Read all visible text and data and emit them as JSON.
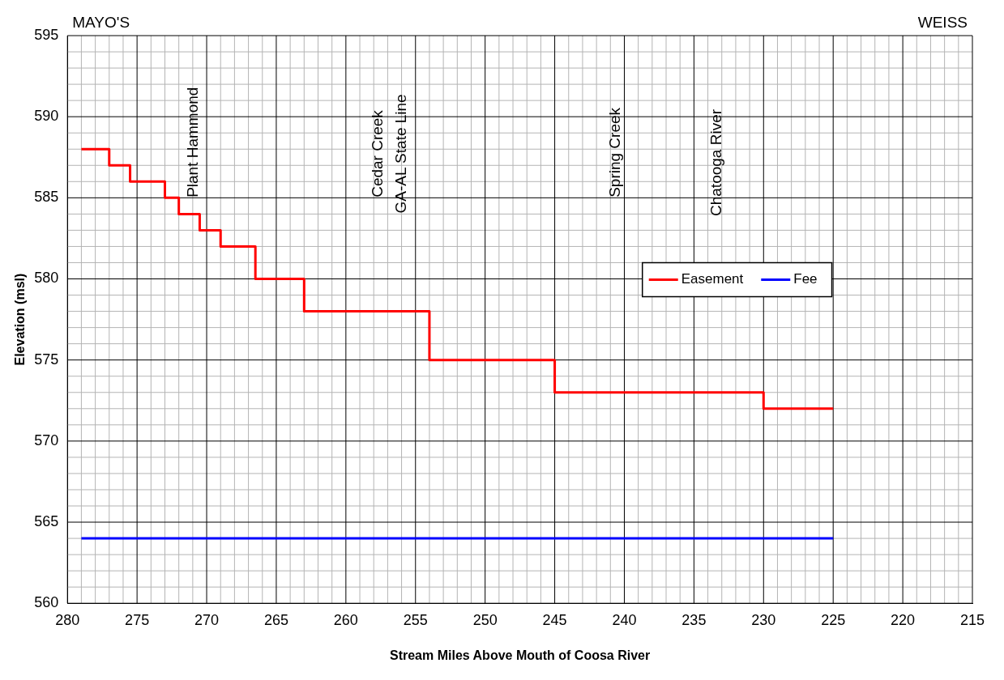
{
  "chart_data": {
    "type": "step",
    "xlabel": "Stream Miles Above Mouth of Coosa River",
    "ylabel": "Elevation (msl)",
    "xlim": [
      280,
      215
    ],
    "xticks": [
      280,
      275,
      270,
      265,
      260,
      255,
      250,
      245,
      240,
      235,
      230,
      225,
      220,
      215
    ],
    "ylim": [
      560,
      595
    ],
    "yticks": [
      560,
      565,
      570,
      575,
      580,
      585,
      590,
      595
    ],
    "grid": true,
    "legend": "right",
    "line_style": "solid",
    "marker": "none",
    "series": [
      {
        "name": "Easement",
        "color": "#ff0000",
        "type": "step",
        "x": [
          279,
          277,
          275.5,
          273,
          272,
          270.5,
          269,
          266.5,
          263,
          254,
          245,
          230,
          225
        ],
        "values": [
          588,
          587,
          586,
          585,
          584,
          583,
          582,
          580,
          578,
          575,
          573,
          572,
          572
        ]
      },
      {
        "name": "Fee",
        "color": "#0000ff",
        "type": "line",
        "x": [
          279,
          225
        ],
        "values": [
          564,
          564
        ]
      }
    ],
    "annotations": [
      "MAYO'S",
      "WEISS",
      "Plant Hammond",
      "Cedar Creek",
      "GA-AL State Line",
      "Spring Creek",
      "Chatooga River"
    ]
  }
}
